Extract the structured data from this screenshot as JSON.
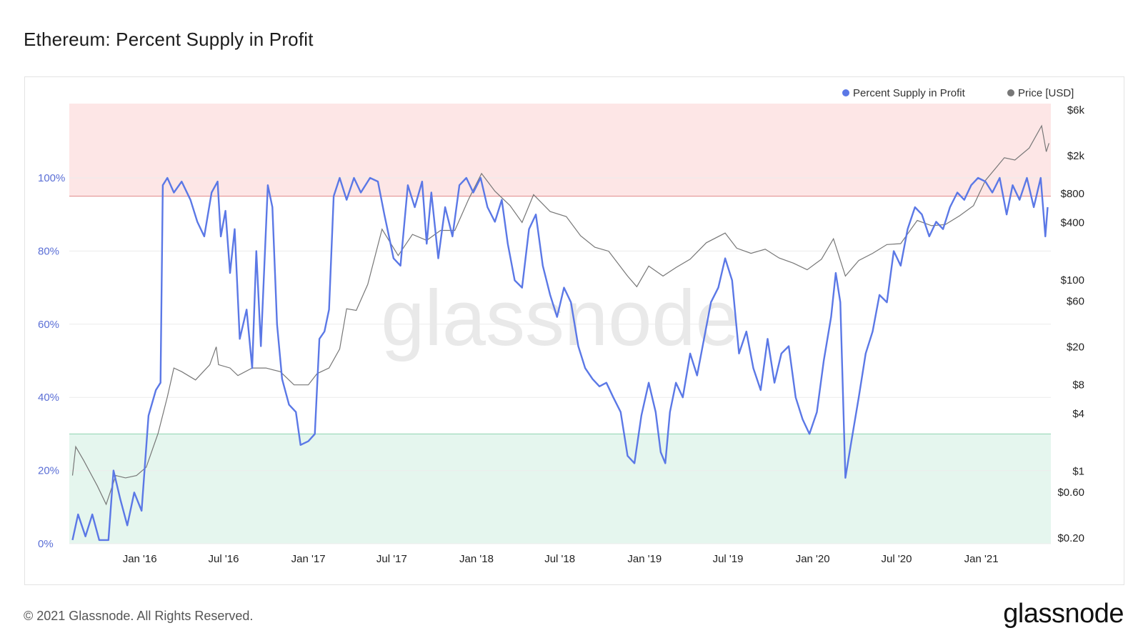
{
  "title": "Ethereum: Percent Supply in Profit",
  "footer": "© 2021 Glassnode. All Rights Reserved.",
  "brand": "glassnode",
  "watermark": "glassnode",
  "colors": {
    "supply_line": "#5b78e6",
    "price_line": "#777777",
    "upper_band": "#fde6e6",
    "upper_line": "#e08a8a",
    "lower_band": "#e5f6ee",
    "lower_line": "#8fd4b0",
    "left_axis_text": "#5b6fd6"
  },
  "chart_data": {
    "type": "line",
    "x_ticks": [
      "Jan '16",
      "Jul '16",
      "Jan '17",
      "Jul '17",
      "Jan '18",
      "Jul '18",
      "Jan '19",
      "Jul '19",
      "Jan '20",
      "Jul '20",
      "Jan '21"
    ],
    "y_left_ticks": [
      "0%",
      "20%",
      "40%",
      "60%",
      "80%",
      "100%"
    ],
    "y_left_range": [
      0,
      100
    ],
    "y_right_ticks": [
      "$0.20",
      "$0.60",
      "$1",
      "$4",
      "$8",
      "$20",
      "$60",
      "$100",
      "$400",
      "$800",
      "$2k",
      "$6k"
    ],
    "y_right_scale": "log",
    "bands": [
      {
        "from": 95,
        "to": 120,
        "label": ""
      },
      {
        "from": 0,
        "to": 30,
        "label": ""
      }
    ],
    "legend_placement": "top-right",
    "series": [
      {
        "name": "Percent Supply in Profit",
        "axis": "left",
        "color": "#5b78e6",
        "points": [
          [
            "2015-08-08",
            1
          ],
          [
            "2015-08-20",
            8
          ],
          [
            "2015-09-05",
            2
          ],
          [
            "2015-09-20",
            8
          ],
          [
            "2015-10-05",
            1
          ],
          [
            "2015-10-25",
            1
          ],
          [
            "2015-11-05",
            20
          ],
          [
            "2015-11-20",
            12
          ],
          [
            "2015-12-05",
            5
          ],
          [
            "2015-12-20",
            14
          ],
          [
            "2016-01-05",
            9
          ],
          [
            "2016-01-20",
            35
          ],
          [
            "2016-02-05",
            42
          ],
          [
            "2016-02-15",
            44
          ],
          [
            "2016-02-20",
            98
          ],
          [
            "2016-03-01",
            100
          ],
          [
            "2016-03-15",
            96
          ],
          [
            "2016-04-01",
            99
          ],
          [
            "2016-04-20",
            94
          ],
          [
            "2016-05-05",
            88
          ],
          [
            "2016-05-20",
            84
          ],
          [
            "2016-06-05",
            96
          ],
          [
            "2016-06-18",
            99
          ],
          [
            "2016-06-25",
            84
          ],
          [
            "2016-07-05",
            91
          ],
          [
            "2016-07-15",
            74
          ],
          [
            "2016-07-25",
            86
          ],
          [
            "2016-08-05",
            56
          ],
          [
            "2016-08-20",
            64
          ],
          [
            "2016-09-01",
            48
          ],
          [
            "2016-09-10",
            80
          ],
          [
            "2016-09-20",
            54
          ],
          [
            "2016-10-05",
            98
          ],
          [
            "2016-10-15",
            92
          ],
          [
            "2016-10-25",
            60
          ],
          [
            "2016-11-05",
            45
          ],
          [
            "2016-11-20",
            38
          ],
          [
            "2016-12-05",
            36
          ],
          [
            "2016-12-15",
            27
          ],
          [
            "2017-01-01",
            28
          ],
          [
            "2017-01-15",
            30
          ],
          [
            "2017-01-25",
            56
          ],
          [
            "2017-02-05",
            58
          ],
          [
            "2017-02-15",
            64
          ],
          [
            "2017-02-25",
            95
          ],
          [
            "2017-03-10",
            100
          ],
          [
            "2017-03-25",
            94
          ],
          [
            "2017-04-10",
            100
          ],
          [
            "2017-04-25",
            96
          ],
          [
            "2017-05-15",
            100
          ],
          [
            "2017-06-01",
            99
          ],
          [
            "2017-06-15",
            90
          ],
          [
            "2017-06-25",
            84
          ],
          [
            "2017-07-05",
            78
          ],
          [
            "2017-07-20",
            76
          ],
          [
            "2017-08-05",
            98
          ],
          [
            "2017-08-20",
            92
          ],
          [
            "2017-09-05",
            99
          ],
          [
            "2017-09-15",
            82
          ],
          [
            "2017-09-25",
            96
          ],
          [
            "2017-10-10",
            78
          ],
          [
            "2017-10-25",
            92
          ],
          [
            "2017-11-10",
            84
          ],
          [
            "2017-11-25",
            98
          ],
          [
            "2017-12-10",
            100
          ],
          [
            "2017-12-25",
            96
          ],
          [
            "2018-01-10",
            100
          ],
          [
            "2018-01-25",
            92
          ],
          [
            "2018-02-10",
            88
          ],
          [
            "2018-02-25",
            94
          ],
          [
            "2018-03-10",
            82
          ],
          [
            "2018-03-25",
            72
          ],
          [
            "2018-04-10",
            70
          ],
          [
            "2018-04-25",
            86
          ],
          [
            "2018-05-10",
            90
          ],
          [
            "2018-05-25",
            76
          ],
          [
            "2018-06-10",
            68
          ],
          [
            "2018-06-25",
            62
          ],
          [
            "2018-07-10",
            70
          ],
          [
            "2018-07-25",
            66
          ],
          [
            "2018-08-10",
            54
          ],
          [
            "2018-08-25",
            48
          ],
          [
            "2018-09-10",
            45
          ],
          [
            "2018-09-25",
            43
          ],
          [
            "2018-10-10",
            44
          ],
          [
            "2018-10-25",
            40
          ],
          [
            "2018-11-10",
            36
          ],
          [
            "2018-11-25",
            24
          ],
          [
            "2018-12-10",
            22
          ],
          [
            "2018-12-25",
            35
          ],
          [
            "2019-01-10",
            44
          ],
          [
            "2019-01-25",
            36
          ],
          [
            "2019-02-05",
            25
          ],
          [
            "2019-02-15",
            22
          ],
          [
            "2019-02-25",
            36
          ],
          [
            "2019-03-10",
            44
          ],
          [
            "2019-03-25",
            40
          ],
          [
            "2019-04-10",
            52
          ],
          [
            "2019-04-25",
            46
          ],
          [
            "2019-05-10",
            56
          ],
          [
            "2019-05-25",
            66
          ],
          [
            "2019-06-10",
            70
          ],
          [
            "2019-06-25",
            78
          ],
          [
            "2019-07-10",
            72
          ],
          [
            "2019-07-25",
            52
          ],
          [
            "2019-08-10",
            58
          ],
          [
            "2019-08-25",
            48
          ],
          [
            "2019-09-10",
            42
          ],
          [
            "2019-09-25",
            56
          ],
          [
            "2019-10-10",
            44
          ],
          [
            "2019-10-25",
            52
          ],
          [
            "2019-11-10",
            54
          ],
          [
            "2019-11-25",
            40
          ],
          [
            "2019-12-10",
            34
          ],
          [
            "2019-12-25",
            30
          ],
          [
            "2020-01-10",
            36
          ],
          [
            "2020-01-25",
            50
          ],
          [
            "2020-02-10",
            62
          ],
          [
            "2020-02-20",
            74
          ],
          [
            "2020-03-01",
            66
          ],
          [
            "2020-03-12",
            18
          ],
          [
            "2020-03-25",
            28
          ],
          [
            "2020-04-10",
            40
          ],
          [
            "2020-04-25",
            52
          ],
          [
            "2020-05-10",
            58
          ],
          [
            "2020-05-25",
            68
          ],
          [
            "2020-06-10",
            66
          ],
          [
            "2020-06-25",
            80
          ],
          [
            "2020-07-10",
            76
          ],
          [
            "2020-07-25",
            86
          ],
          [
            "2020-08-10",
            92
          ],
          [
            "2020-08-25",
            90
          ],
          [
            "2020-09-10",
            84
          ],
          [
            "2020-09-25",
            88
          ],
          [
            "2020-10-10",
            86
          ],
          [
            "2020-10-25",
            92
          ],
          [
            "2020-11-10",
            96
          ],
          [
            "2020-11-25",
            94
          ],
          [
            "2020-12-10",
            98
          ],
          [
            "2020-12-25",
            100
          ],
          [
            "2021-01-10",
            99
          ],
          [
            "2021-01-25",
            96
          ],
          [
            "2021-02-10",
            100
          ],
          [
            "2021-02-25",
            90
          ],
          [
            "2021-03-10",
            98
          ],
          [
            "2021-03-25",
            94
          ],
          [
            "2021-04-10",
            100
          ],
          [
            "2021-04-25",
            92
          ],
          [
            "2021-05-10",
            100
          ],
          [
            "2021-05-20",
            84
          ],
          [
            "2021-05-25",
            92
          ]
        ]
      },
      {
        "name": "Price [USD]",
        "axis": "right",
        "color": "#777777",
        "points": [
          [
            "2015-08-08",
            0.9
          ],
          [
            "2015-08-15",
            1.8
          ],
          [
            "2015-09-01",
            1.3
          ],
          [
            "2015-10-01",
            0.7
          ],
          [
            "2015-10-20",
            0.45
          ],
          [
            "2015-11-10",
            0.9
          ],
          [
            "2015-12-01",
            0.85
          ],
          [
            "2015-12-25",
            0.9
          ],
          [
            "2016-01-15",
            1.1
          ],
          [
            "2016-02-10",
            2.5
          ],
          [
            "2016-03-01",
            6
          ],
          [
            "2016-03-15",
            12
          ],
          [
            "2016-04-01",
            11
          ],
          [
            "2016-05-01",
            9
          ],
          [
            "2016-06-01",
            13
          ],
          [
            "2016-06-15",
            20
          ],
          [
            "2016-06-20",
            13
          ],
          [
            "2016-07-15",
            12
          ],
          [
            "2016-08-01",
            10
          ],
          [
            "2016-09-01",
            12
          ],
          [
            "2016-10-01",
            12
          ],
          [
            "2016-11-01",
            11
          ],
          [
            "2016-12-01",
            8
          ],
          [
            "2017-01-01",
            8
          ],
          [
            "2017-01-20",
            10.5
          ],
          [
            "2017-02-15",
            12
          ],
          [
            "2017-03-10",
            19
          ],
          [
            "2017-03-25",
            50
          ],
          [
            "2017-04-15",
            48
          ],
          [
            "2017-05-10",
            90
          ],
          [
            "2017-06-10",
            340
          ],
          [
            "2017-07-15",
            180
          ],
          [
            "2017-08-15",
            300
          ],
          [
            "2017-09-15",
            260
          ],
          [
            "2017-10-15",
            330
          ],
          [
            "2017-11-15",
            330
          ],
          [
            "2017-12-15",
            700
          ],
          [
            "2018-01-12",
            1300
          ],
          [
            "2018-02-10",
            850
          ],
          [
            "2018-03-15",
            600
          ],
          [
            "2018-04-10",
            400
          ],
          [
            "2018-05-05",
            780
          ],
          [
            "2018-06-10",
            520
          ],
          [
            "2018-07-15",
            460
          ],
          [
            "2018-08-15",
            290
          ],
          [
            "2018-09-15",
            220
          ],
          [
            "2018-10-15",
            200
          ],
          [
            "2018-11-25",
            110
          ],
          [
            "2018-12-15",
            85
          ],
          [
            "2019-01-10",
            140
          ],
          [
            "2019-02-10",
            110
          ],
          [
            "2019-03-10",
            135
          ],
          [
            "2019-04-10",
            165
          ],
          [
            "2019-05-15",
            245
          ],
          [
            "2019-06-25",
            310
          ],
          [
            "2019-07-20",
            215
          ],
          [
            "2019-08-20",
            190
          ],
          [
            "2019-09-20",
            210
          ],
          [
            "2019-10-20",
            170
          ],
          [
            "2019-11-20",
            150
          ],
          [
            "2019-12-20",
            128
          ],
          [
            "2020-01-20",
            165
          ],
          [
            "2020-02-15",
            270
          ],
          [
            "2020-03-12",
            110
          ],
          [
            "2020-04-10",
            160
          ],
          [
            "2020-05-10",
            190
          ],
          [
            "2020-06-10",
            235
          ],
          [
            "2020-07-10",
            240
          ],
          [
            "2020-08-15",
            420
          ],
          [
            "2020-09-15",
            370
          ],
          [
            "2020-10-15",
            380
          ],
          [
            "2020-11-15",
            470
          ],
          [
            "2020-12-15",
            600
          ],
          [
            "2021-01-10",
            1100
          ],
          [
            "2021-02-20",
            1900
          ],
          [
            "2021-03-15",
            1800
          ],
          [
            "2021-04-15",
            2400
          ],
          [
            "2021-05-12",
            4100
          ],
          [
            "2021-05-22",
            2200
          ],
          [
            "2021-05-28",
            2700
          ]
        ]
      }
    ]
  }
}
